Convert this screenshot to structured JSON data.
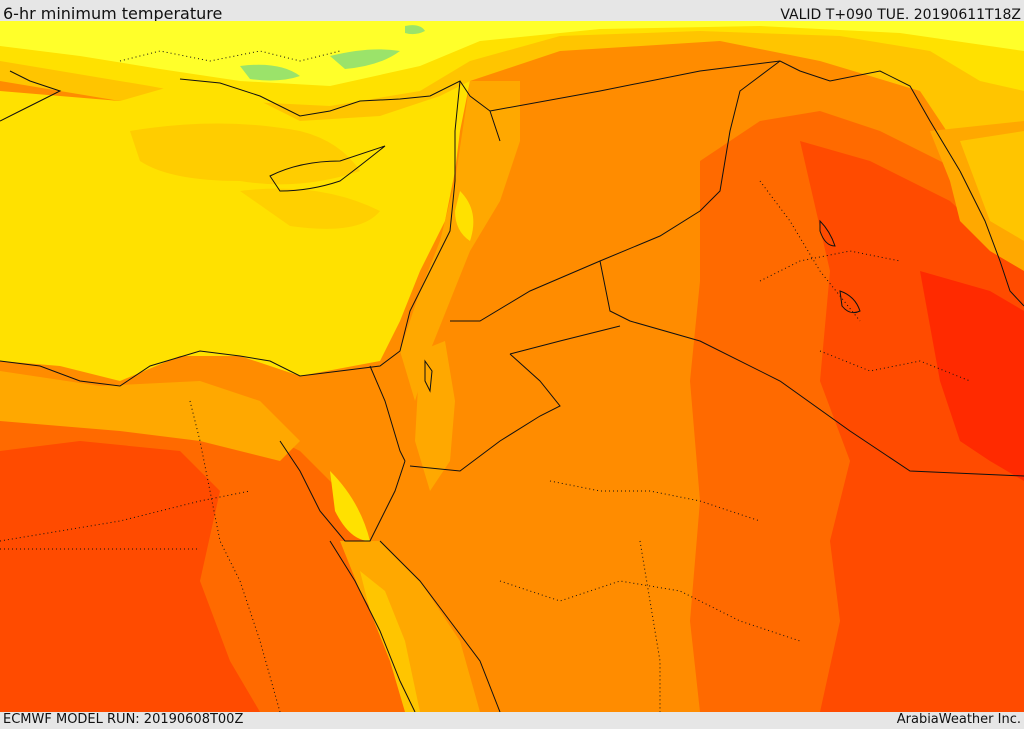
{
  "header": {
    "title": "6-hr minimum temperature",
    "valid": "VALID T+090 TUE. 20190611T18Z"
  },
  "footer": {
    "model_run": "ECMWF MODEL RUN: 20190608T00Z",
    "provider": "ArabiaWeather Inc."
  },
  "map": {
    "variable": "6-hr minimum temperature",
    "region": "Eastern Mediterranean, Levant, Iraq and northern Saudi Arabia",
    "palette": {
      "green": "#9be36a",
      "light_yellow": "#ffff2a",
      "yellow": "#ffe100",
      "gold": "#ffc500",
      "amber": "#ffa800",
      "orange": "#ff8c00",
      "dark_orange": "#ff6a00",
      "red_orange": "#ff4b00",
      "red": "#ff2a00",
      "border": "#111111"
    }
  }
}
